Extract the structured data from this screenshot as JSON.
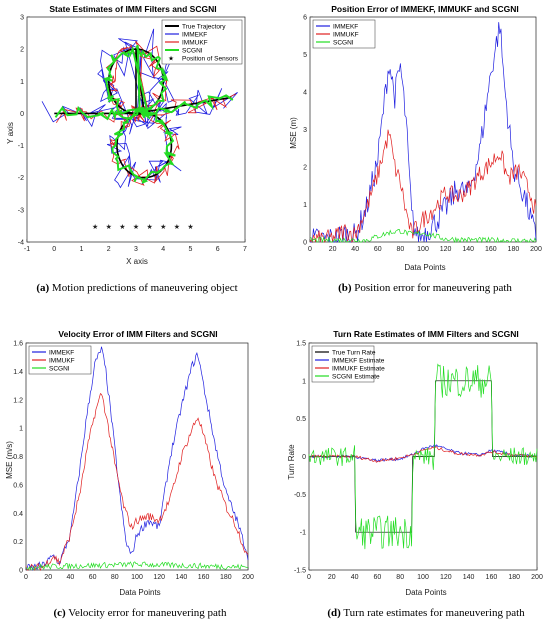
{
  "colors": {
    "blue": "#1f1fe0",
    "red": "#e01f1f",
    "green": "#22dd22",
    "black": "#000000"
  },
  "chart_data": [
    {
      "id": "a",
      "type": "line",
      "title": "State Estimates of IMM Filters and SCGNI",
      "xlabel": "X axis",
      "ylabel": "Y axis",
      "xlim": [
        -1,
        7
      ],
      "ylim": [
        -4,
        3
      ],
      "xticks": [
        "-1",
        "0",
        "1",
        "2",
        "3",
        "4",
        "5",
        "6",
        "7"
      ],
      "yticks": [
        "-4",
        "-3",
        "-2",
        "-1",
        "0",
        "1",
        "2",
        "3"
      ],
      "legend_position": "top-right",
      "series": [
        {
          "name": "True Trajectory",
          "color": "#000000"
        },
        {
          "name": "IMMEKF",
          "color": "#1f1fe0"
        },
        {
          "name": "IMMUKF",
          "color": "#e01f1f"
        },
        {
          "name": "SCGNI",
          "color": "#22dd22"
        }
      ],
      "sensors": {
        "name": "Position of Sensors",
        "x": [
          1.5,
          2.0,
          2.5,
          3.0,
          3.5,
          4.0,
          4.5,
          5.0
        ],
        "y": -3.5
      },
      "caption_label": "(a)",
      "caption_text": " Motion predictions of maneuvering object"
    },
    {
      "id": "b",
      "type": "line",
      "title": "Position Error of IMMEKF, IMMUKF and SCGNI",
      "xlabel": "Data Points",
      "ylabel": "MSE (m)",
      "xlim": [
        0,
        200
      ],
      "ylim": [
        0,
        6
      ],
      "xticks": [
        "0",
        "20",
        "40",
        "60",
        "80",
        "100",
        "120",
        "140",
        "160",
        "180",
        "200"
      ],
      "yticks": [
        "0",
        "1",
        "2",
        "3",
        "4",
        "5",
        "6"
      ],
      "legend_position": "top-left",
      "series": [
        {
          "name": "IMMEKF",
          "color": "#1f1fe0",
          "keypoints": [
            [
              0,
              0.05
            ],
            [
              20,
              0.08
            ],
            [
              30,
              0.2
            ],
            [
              40,
              0.15
            ],
            [
              50,
              0.9
            ],
            [
              60,
              2.2
            ],
            [
              66,
              3.8
            ],
            [
              70,
              4.8
            ],
            [
              75,
              3.9
            ],
            [
              80,
              4.7
            ],
            [
              85,
              3.2
            ],
            [
              90,
              0.7
            ],
            [
              95,
              0.1
            ],
            [
              100,
              0.2
            ],
            [
              110,
              0.5
            ],
            [
              120,
              0.9
            ],
            [
              130,
              1.4
            ],
            [
              140,
              1.3
            ],
            [
              150,
              2.4
            ],
            [
              160,
              4.5
            ],
            [
              168,
              5.8
            ],
            [
              172,
              4.2
            ],
            [
              180,
              2.0
            ],
            [
              190,
              1.2
            ],
            [
              200,
              0.1
            ]
          ]
        },
        {
          "name": "IMMUKF",
          "color": "#e01f1f",
          "keypoints": [
            [
              0,
              0.05
            ],
            [
              20,
              0.1
            ],
            [
              30,
              0.3
            ],
            [
              40,
              0.2
            ],
            [
              50,
              0.9
            ],
            [
              60,
              1.8
            ],
            [
              66,
              2.5
            ],
            [
              70,
              2.9
            ],
            [
              75,
              2.0
            ],
            [
              80,
              1.6
            ],
            [
              85,
              0.8
            ],
            [
              90,
              0.2
            ],
            [
              100,
              0.6
            ],
            [
              110,
              0.9
            ],
            [
              120,
              1.3
            ],
            [
              130,
              1.2
            ],
            [
              140,
              1.4
            ],
            [
              150,
              1.8
            ],
            [
              160,
              2.1
            ],
            [
              168,
              2.4
            ],
            [
              175,
              1.7
            ],
            [
              185,
              1.9
            ],
            [
              195,
              1.3
            ],
            [
              200,
              0.8
            ]
          ]
        },
        {
          "name": "SCGNI",
          "color": "#22dd22",
          "keypoints": [
            [
              0,
              0.05
            ],
            [
              50,
              0.05
            ],
            [
              60,
              0.15
            ],
            [
              70,
              0.25
            ],
            [
              80,
              0.3
            ],
            [
              90,
              0.2
            ],
            [
              100,
              0.25
            ],
            [
              120,
              0.08
            ],
            [
              150,
              0.05
            ],
            [
              200,
              0.03
            ]
          ]
        }
      ],
      "caption_label": "(b)",
      "caption_text": " Position error for maneuvering path"
    },
    {
      "id": "c",
      "type": "line",
      "title": "Velocity Error of IMM Filters and SCGNI",
      "xlabel": "Data Points",
      "ylabel": "MSE (m/s)",
      "xlim": [
        0,
        200
      ],
      "ylim": [
        0,
        1.6
      ],
      "xticks": [
        "0",
        "20",
        "40",
        "60",
        "80",
        "100",
        "120",
        "140",
        "160",
        "180",
        "200"
      ],
      "yticks": [
        "0",
        "0.2",
        "0.4",
        "0.6",
        "0.8",
        "1",
        "1.2",
        "1.4",
        "1.6"
      ],
      "legend_position": "top-left",
      "series": [
        {
          "name": "IMMEKF",
          "color": "#1f1fe0",
          "keypoints": [
            [
              0,
              0.01
            ],
            [
              15,
              0.03
            ],
            [
              25,
              0.1
            ],
            [
              30,
              0.05
            ],
            [
              40,
              0.25
            ],
            [
              50,
              0.8
            ],
            [
              55,
              1.1
            ],
            [
              62,
              1.45
            ],
            [
              68,
              1.56
            ],
            [
              72,
              1.4
            ],
            [
              78,
              1.0
            ],
            [
              85,
              0.5
            ],
            [
              90,
              0.2
            ],
            [
              95,
              0.1
            ],
            [
              100,
              0.25
            ],
            [
              110,
              0.35
            ],
            [
              120,
              0.3
            ],
            [
              130,
              0.8
            ],
            [
              140,
              1.15
            ],
            [
              150,
              1.45
            ],
            [
              155,
              1.52
            ],
            [
              160,
              1.3
            ],
            [
              170,
              0.9
            ],
            [
              180,
              0.55
            ],
            [
              190,
              0.35
            ],
            [
              200,
              0.1
            ]
          ]
        },
        {
          "name": "IMMUKF",
          "color": "#e01f1f",
          "keypoints": [
            [
              0,
              0.01
            ],
            [
              15,
              0.02
            ],
            [
              25,
              0.1
            ],
            [
              30,
              0.05
            ],
            [
              40,
              0.25
            ],
            [
              50,
              0.6
            ],
            [
              55,
              0.85
            ],
            [
              62,
              1.1
            ],
            [
              68,
              1.25
            ],
            [
              72,
              1.1
            ],
            [
              80,
              0.75
            ],
            [
              88,
              0.45
            ],
            [
              95,
              0.3
            ],
            [
              100,
              0.35
            ],
            [
              110,
              0.38
            ],
            [
              120,
              0.35
            ],
            [
              130,
              0.5
            ],
            [
              140,
              0.8
            ],
            [
              150,
              1.0
            ],
            [
              155,
              1.08
            ],
            [
              160,
              0.95
            ],
            [
              170,
              0.65
            ],
            [
              180,
              0.45
            ],
            [
              190,
              0.3
            ],
            [
              200,
              0.08
            ]
          ]
        },
        {
          "name": "SCGNI",
          "color": "#22dd22",
          "keypoints": [
            [
              0,
              0.02
            ],
            [
              50,
              0.03
            ],
            [
              100,
              0.04
            ],
            [
              150,
              0.03
            ],
            [
              200,
              0.02
            ]
          ]
        }
      ],
      "caption_label": "(c)",
      "caption_text": " Velocity error for maneuvering path"
    },
    {
      "id": "d",
      "type": "line",
      "title": "Turn Rate Estimates of IMM Filters and SCGNI",
      "xlabel": "Data Points",
      "ylabel": "Turn Rate",
      "xlim": [
        0,
        200
      ],
      "ylim": [
        -1.5,
        1.5
      ],
      "xticks": [
        "0",
        "20",
        "40",
        "60",
        "80",
        "100",
        "120",
        "140",
        "160",
        "180",
        "200"
      ],
      "yticks": [
        "-1.5",
        "-1",
        "-0.5",
        "0",
        "0.5",
        "1",
        "1.5"
      ],
      "legend_position": "top-left",
      "series": [
        {
          "name": "True Turn Rate",
          "color": "#000000",
          "keypoints": [
            [
              0,
              0
            ],
            [
              40,
              0
            ],
            [
              40,
              -1
            ],
            [
              90,
              -1
            ],
            [
              90,
              0
            ],
            [
              110,
              0
            ],
            [
              110,
              1
            ],
            [
              160,
              1
            ],
            [
              160,
              0
            ],
            [
              200,
              0
            ]
          ]
        },
        {
          "name": "IMMEKF Estimate",
          "color": "#1f1fe0",
          "keypoints": [
            [
              0,
              0
            ],
            [
              40,
              0
            ],
            [
              60,
              -0.05
            ],
            [
              80,
              -0.03
            ],
            [
              90,
              0.02
            ],
            [
              100,
              0.1
            ],
            [
              110,
              0.15
            ],
            [
              130,
              0.05
            ],
            [
              150,
              0.02
            ],
            [
              160,
              0.08
            ],
            [
              180,
              0.02
            ],
            [
              200,
              0
            ]
          ]
        },
        {
          "name": "IMMUKF Estimate",
          "color": "#e01f1f",
          "keypoints": [
            [
              0,
              0
            ],
            [
              40,
              0
            ],
            [
              60,
              -0.06
            ],
            [
              80,
              -0.02
            ],
            [
              90,
              0.02
            ],
            [
              100,
              0.08
            ],
            [
              110,
              0.12
            ],
            [
              130,
              0.04
            ],
            [
              150,
              0.02
            ],
            [
              160,
              0.06
            ],
            [
              180,
              0.02
            ],
            [
              200,
              0
            ]
          ]
        },
        {
          "name": "SCGNI Estimate",
          "color": "#22dd22",
          "keypoints": [
            [
              0,
              0
            ],
            [
              40,
              0
            ],
            [
              40,
              -1
            ],
            [
              90,
              -1
            ],
            [
              90,
              0
            ],
            [
              110,
              0
            ],
            [
              110,
              1
            ],
            [
              160,
              1
            ],
            [
              160,
              0
            ],
            [
              200,
              0
            ]
          ]
        }
      ],
      "caption_label": "(d)",
      "caption_text": " Turn rate estimates for maneuvering path"
    }
  ]
}
